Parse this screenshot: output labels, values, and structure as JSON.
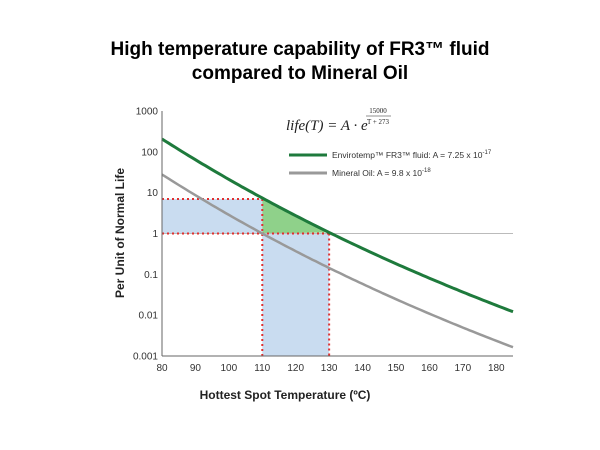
{
  "chart_data": {
    "type": "line",
    "title": [
      "High temperature capability of FR3™ fluid",
      "compared to Mineral Oil"
    ],
    "xlabel": "Hottest Spot Temperature (ºC)",
    "ylabel": "Per Unit of Normal Life",
    "xlim": [
      80,
      185
    ],
    "ylim": [
      0.001,
      1000
    ],
    "yscale": "log",
    "x_ticks": [
      "80",
      "90",
      "100",
      "110",
      "120",
      "130",
      "140",
      "150",
      "160",
      "170",
      "180"
    ],
    "y_ticks": [
      "1000",
      "100",
      "10",
      "1",
      "0.1",
      "0.01",
      "0.001"
    ],
    "formula": {
      "lhs": "life(T) = A · e",
      "exp_numerator": "15000",
      "exp_denominator": "T + 273"
    },
    "series": [
      {
        "name": "Envirotemp™ FR3™ fluid: A = 7.25 x 10",
        "exponent": "-17",
        "color": "#1e7a3c",
        "A": 7.25e-17,
        "x": [
          80,
          90,
          100,
          110,
          120,
          130,
          140,
          150,
          160,
          170,
          180,
          185
        ],
        "y": [
          196,
          60,
          19.7,
          6.9,
          2.5,
          0.95,
          0.38,
          0.155,
          0.066,
          0.029,
          0.013,
          0.0088
        ]
      },
      {
        "name": "Mineral Oil: A = 9.8 x 10",
        "exponent": "-18",
        "color": "#999999",
        "A": 9.8e-18,
        "x": [
          80,
          90,
          100,
          110,
          120,
          130,
          140,
          150,
          160,
          170,
          180,
          185
        ],
        "y": [
          26.5,
          8.1,
          2.66,
          0.93,
          0.34,
          0.128,
          0.051,
          0.021,
          0.0089,
          0.0039,
          0.00176,
          0.0012
        ]
      }
    ],
    "reference_line": {
      "y": 1,
      "color": "#bbbbbb"
    },
    "highlights": [
      {
        "name": "mineral-oil-life-region",
        "x": [
          80,
          110
        ],
        "y": [
          1,
          7
        ],
        "color": "#c9dcf0"
      },
      {
        "name": "temperature-gain-region",
        "x": [
          110,
          130
        ],
        "y": [
          0.001,
          1
        ],
        "color": "#c9dcf0"
      },
      {
        "name": "life-gain-region",
        "x": [
          110,
          130
        ],
        "y": [
          1,
          7
        ],
        "color": "#8fd18a"
      }
    ],
    "dotted_guides_color": "#e03030",
    "grid": false,
    "legend_position": "upper-right"
  }
}
